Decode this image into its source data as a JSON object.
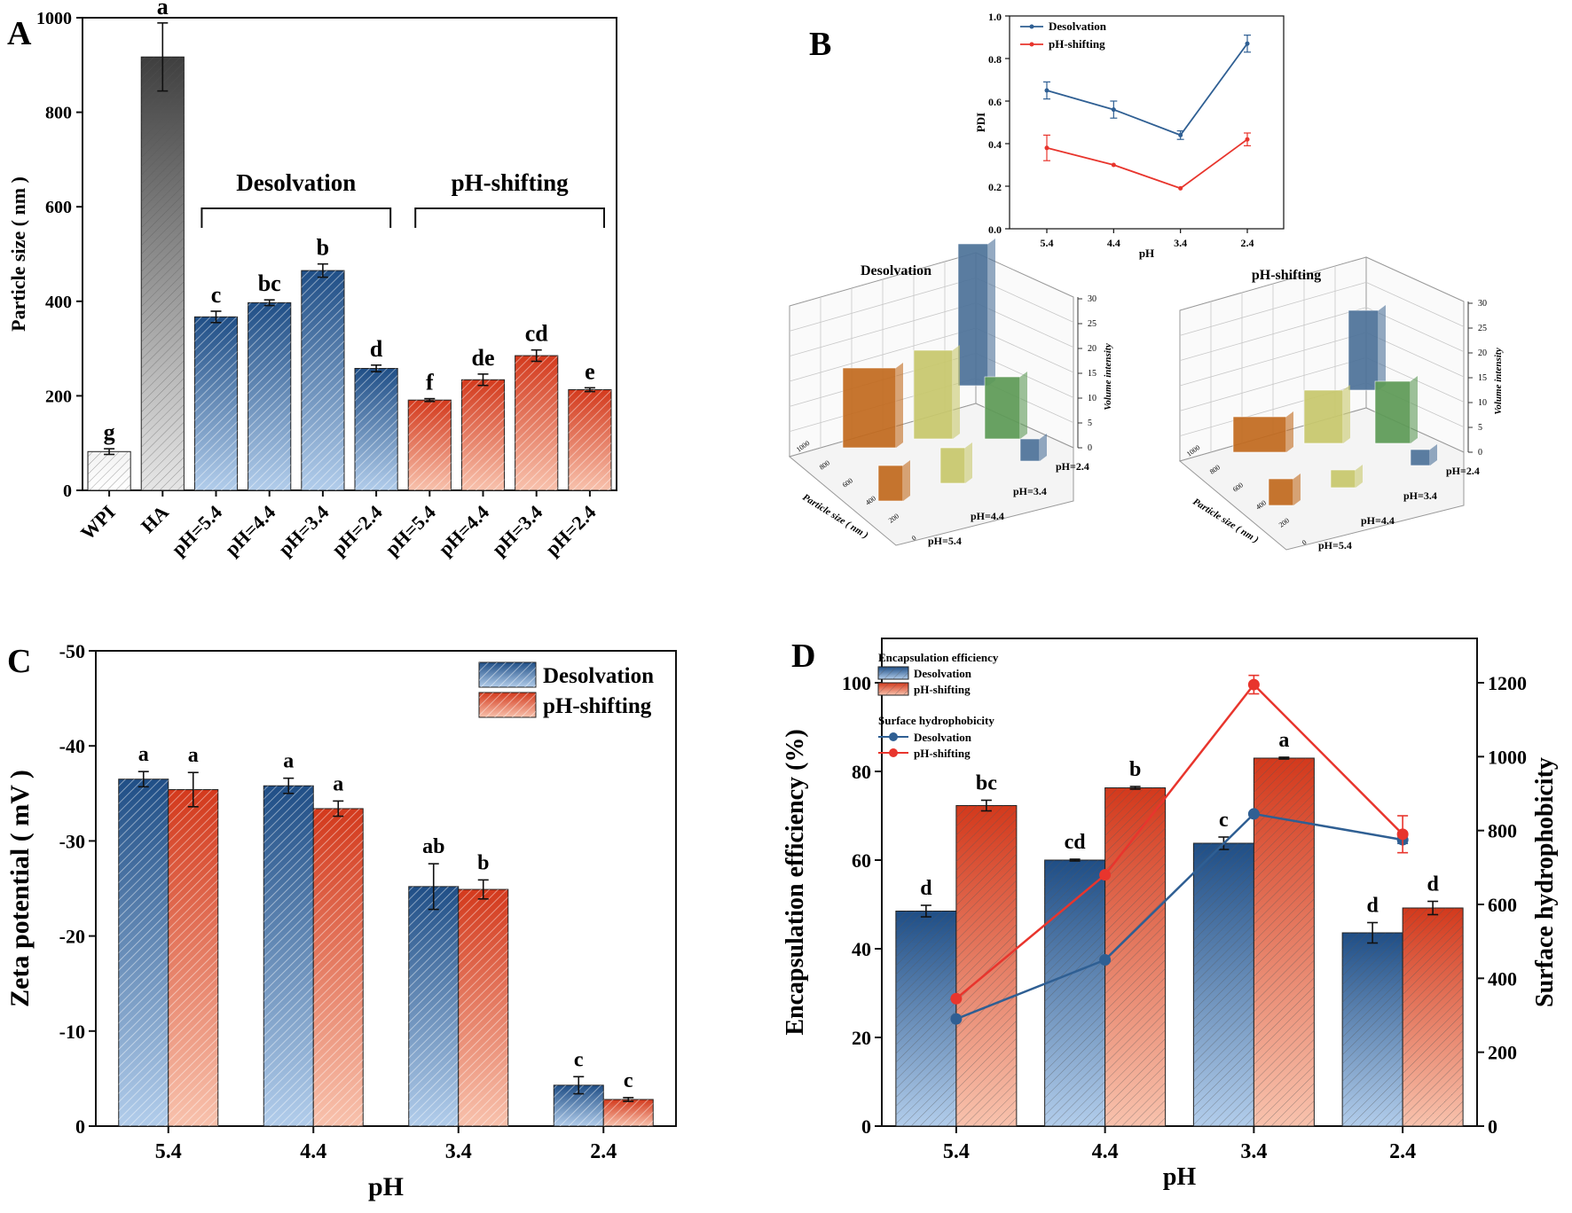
{
  "colors": {
    "blue_top": "#1f4e86",
    "blue_bottom": "#a9c6e8",
    "red_top": "#d73a1e",
    "red_bottom": "#f6b9a4",
    "line_blue": "#2f5f93",
    "line_red": "#e8352d",
    "gray_dark": "#4a4a4a",
    "gray_light": "#e3e3e3"
  },
  "panel_letters": {
    "a": "A",
    "b": "B",
    "c": "C",
    "d": "D"
  },
  "chart_data": [
    {
      "id": "A",
      "type": "bar",
      "categories": [
        "WPI",
        "HA",
        "pH=5.4",
        "pH=4.4",
        "pH=3.4",
        "pH=2.4",
        "pH=5.4",
        "pH=4.4",
        "pH=3.4",
        "pH=2.4"
      ],
      "values": [
        82,
        917,
        367,
        397,
        465,
        258,
        191,
        234,
        285,
        213
      ],
      "errors": [
        6,
        72,
        12,
        6,
        14,
        7,
        3,
        12,
        12,
        4
      ],
      "letters": [
        "g",
        "a",
        "c",
        "bc",
        "b",
        "d",
        "f",
        "de",
        "cd",
        "e"
      ],
      "groups": [
        "gray_light",
        "gray_dark",
        "blue",
        "blue",
        "blue",
        "blue",
        "red",
        "red",
        "red",
        "red"
      ],
      "group_labels": {
        "desolvation": "Desolvation",
        "ph_shifting": "pH-shifting"
      },
      "ylabel": "Particle size ( nm )",
      "ylim": [
        0,
        1000
      ],
      "yticks": [
        0,
        200,
        400,
        600,
        800,
        1000
      ]
    },
    {
      "id": "B_pdi",
      "type": "line",
      "x": [
        "5.4",
        "4.4",
        "3.4",
        "2.4"
      ],
      "series": [
        {
          "name": "Desolvation",
          "values": [
            0.65,
            0.56,
            0.44,
            0.87
          ],
          "errors": [
            0.04,
            0.04,
            0.02,
            0.04
          ]
        },
        {
          "name": "pH-shifting",
          "values": [
            0.38,
            0.3,
            0.19,
            0.42
          ],
          "errors": [
            0.06,
            0.005,
            0.005,
            0.03
          ]
        }
      ],
      "xlabel": "pH",
      "ylabel": "PDI",
      "ylim": [
        0.0,
        1.0
      ],
      "yticks": [
        "0.0",
        "0.2",
        "0.4",
        "0.6",
        "0.8",
        "1.0"
      ]
    },
    {
      "id": "B_3d",
      "type": "3d-bar",
      "plots": [
        {
          "title": "Desolvation"
        },
        {
          "title": "pH-shifting"
        }
      ],
      "zlabel": "Volume intensity",
      "xlabel": "Particle size ( nm )",
      "z_ticks": [
        "0",
        "5",
        "10",
        "15",
        "20",
        "25",
        "30"
      ],
      "x_ticks": [
        "0",
        "200",
        "400",
        "600",
        "800",
        "1000"
      ],
      "ph_labels": [
        "pH=2.4",
        "pH=3.4",
        "pH=4.4",
        "pH=5.4"
      ]
    },
    {
      "id": "C",
      "type": "bar",
      "categories": [
        "5.4",
        "4.4",
        "3.4",
        "2.4"
      ],
      "series": [
        {
          "name": "Desolvation",
          "values": [
            -36.5,
            -35.8,
            -25.2,
            -4.3
          ],
          "errors": [
            0.8,
            0.8,
            2.4,
            0.9
          ],
          "letters": [
            "a",
            "a",
            "ab",
            "c"
          ]
        },
        {
          "name": "pH-shifting",
          "values": [
            -35.4,
            -33.4,
            -24.9,
            -2.8
          ],
          "errors": [
            1.8,
            0.8,
            1.0,
            0.2
          ],
          "letters": [
            "a",
            "a",
            "b",
            "c"
          ]
        }
      ],
      "xlabel": "pH",
      "ylabel": "Zeta potential ( mV )",
      "ylim": [
        0,
        -50
      ],
      "yticks": [
        "0",
        "-10",
        "-20",
        "-30",
        "-40",
        "-50"
      ],
      "legend": "top-right"
    },
    {
      "id": "D",
      "type": "bar+line",
      "categories": [
        "5.4",
        "4.4",
        "3.4",
        "2.4"
      ],
      "bars": [
        {
          "name": "Desolvation",
          "values": [
            48.5,
            60.0,
            63.8,
            43.6
          ],
          "errors": [
            1.3,
            0.2,
            1.4,
            2.3
          ],
          "letters": [
            "d",
            "cd",
            "c",
            "d"
          ]
        },
        {
          "name": "pH-shifting",
          "values": [
            72.3,
            76.3,
            83.0,
            49.2
          ],
          "errors": [
            1.2,
            0.3,
            0.2,
            1.5
          ],
          "letters": [
            "bc",
            "b",
            "a",
            "d"
          ]
        }
      ],
      "lines": [
        {
          "name": "Desolvation",
          "values": [
            290,
            450,
            845,
            775
          ],
          "errors": [
            0,
            0,
            0,
            10
          ]
        },
        {
          "name": "pH-shifting",
          "values": [
            345,
            680,
            1195,
            790
          ],
          "errors": [
            0,
            0,
            25,
            50
          ]
        }
      ],
      "legend_titles": {
        "bars": "Encapsulation efficiency",
        "lines": "Surface hydrophobicity"
      },
      "xlabel": "pH",
      "ylabel_left": "Encapsulation efficiency (%)",
      "ylabel_right": "Surface hydrophobicity",
      "ylim_left": [
        0,
        110
      ],
      "ylim_right": [
        0,
        1320
      ],
      "yticks_left": [
        0,
        20,
        40,
        60,
        80,
        100
      ],
      "yticks_right": [
        0,
        200,
        400,
        600,
        800,
        1000,
        1200
      ]
    }
  ]
}
